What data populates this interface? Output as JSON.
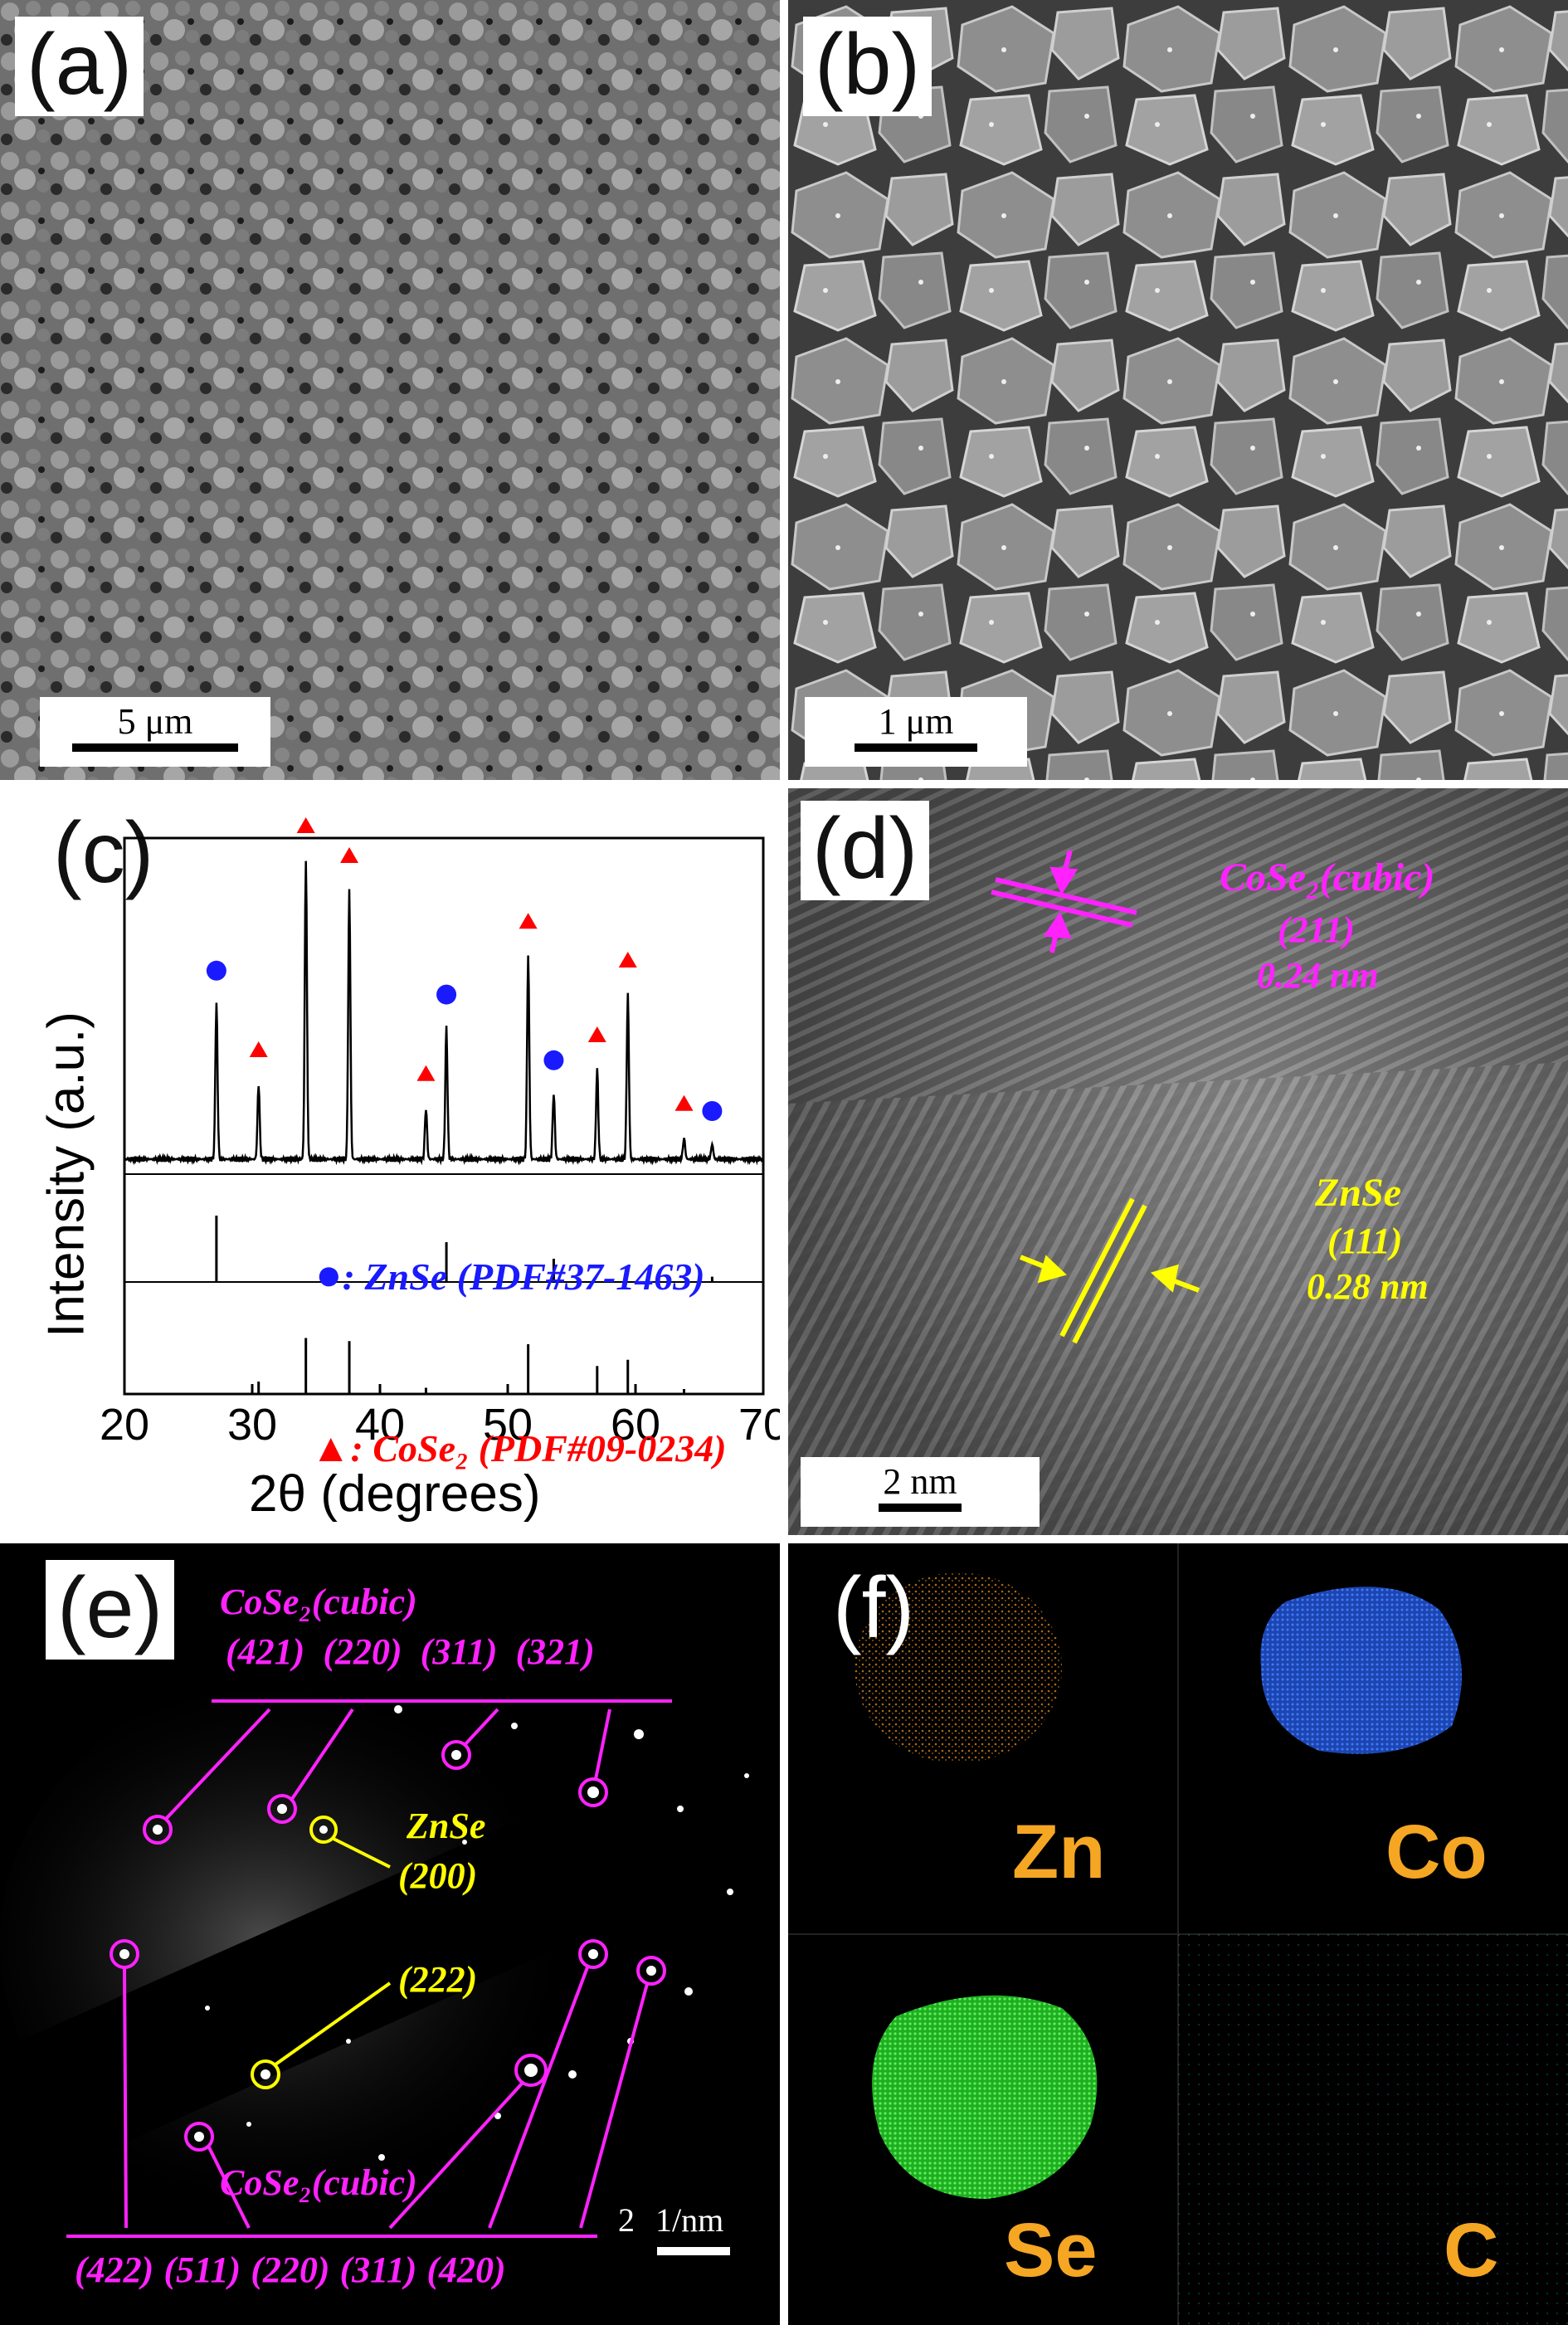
{
  "panels": {
    "a": {
      "label": "(a)",
      "scale": "5 μm"
    },
    "b": {
      "label": "(b)",
      "scale": "1 μm"
    },
    "c": {
      "label": "(c)"
    },
    "d": {
      "label": "(d)",
      "scale": "2 nm",
      "cose2": {
        "phase": "CoSe₂(cubic)",
        "plane": "(211)",
        "d": "0.24 nm"
      },
      "znse": {
        "phase": "ZnSe",
        "plane": "(111)",
        "d": "0.28 nm"
      }
    },
    "e": {
      "label": "(e)",
      "scale": "1/nm",
      "scale_num": "2",
      "top_phase": "CoSe₂(cubic)",
      "top_planes": [
        "(421)",
        "(220)",
        "(311)",
        "(321)"
      ],
      "znse_phase": "ZnSe",
      "znse_200": "(200)",
      "znse_222": "(222)",
      "bottom_phase": "CoSe₂(cubic)",
      "bottom_planes": [
        "(422)",
        "(511)",
        "(220)",
        "(311)",
        "(420)"
      ]
    },
    "f": {
      "label": "(f)",
      "elements": [
        "Zn",
        "Co",
        "Se",
        "C"
      ]
    }
  },
  "colors": {
    "magenta": "#ff22ff",
    "yellow": "#ffff00",
    "zn": "#e08a1e",
    "co": "#2a5bd8",
    "se": "#2fcf2f",
    "c": "#1fb5b5",
    "znse_marker": "#1a1aff",
    "cose2_marker": "#ff0000"
  },
  "chart_data": {
    "type": "line",
    "xlabel": "2θ (degrees)",
    "ylabel": "Intensity (a.u.)",
    "xlim": [
      20,
      70
    ],
    "xticks": [
      20,
      30,
      40,
      50,
      60,
      70
    ],
    "legend": [
      {
        "marker": "●",
        "text": "ZnSe (PDF#37-1463)"
      },
      {
        "marker": "▲",
        "text": "CoSe₂ (PDF#09-0234)"
      }
    ],
    "series": [
      {
        "peaks": [
          {
            "x": 27.2,
            "y": 0.52,
            "phase": "ZnSe"
          },
          {
            "x": 30.5,
            "y": 0.25,
            "phase": "CoSe2"
          },
          {
            "x": 34.2,
            "y": 1.0,
            "phase": "CoSe2"
          },
          {
            "x": 37.6,
            "y": 0.9,
            "phase": "CoSe2"
          },
          {
            "x": 43.6,
            "y": 0.17,
            "phase": "CoSe2"
          },
          {
            "x": 45.2,
            "y": 0.44,
            "phase": "ZnSe"
          },
          {
            "x": 51.6,
            "y": 0.68,
            "phase": "CoSe2"
          },
          {
            "x": 53.6,
            "y": 0.22,
            "phase": "ZnSe"
          },
          {
            "x": 57.0,
            "y": 0.3,
            "phase": "CoSe2"
          },
          {
            "x": 59.4,
            "y": 0.55,
            "phase": "CoSe2"
          },
          {
            "x": 63.8,
            "y": 0.07,
            "phase": "CoSe2"
          },
          {
            "x": 66.0,
            "y": 0.05,
            "phase": "ZnSe"
          }
        ]
      }
    ],
    "reference_znse": [
      {
        "x": 27.2,
        "y": 1.0
      },
      {
        "x": 45.2,
        "y": 0.6
      },
      {
        "x": 53.6,
        "y": 0.35
      },
      {
        "x": 66.0,
        "y": 0.08
      }
    ],
    "reference_cose2": [
      {
        "x": 30.5,
        "y": 0.2
      },
      {
        "x": 34.2,
        "y": 0.9
      },
      {
        "x": 37.6,
        "y": 0.85
      },
      {
        "x": 43.6,
        "y": 0.1
      },
      {
        "x": 51.6,
        "y": 0.8
      },
      {
        "x": 57.0,
        "y": 0.45
      },
      {
        "x": 59.4,
        "y": 0.55
      },
      {
        "x": 63.8,
        "y": 0.08
      }
    ]
  }
}
